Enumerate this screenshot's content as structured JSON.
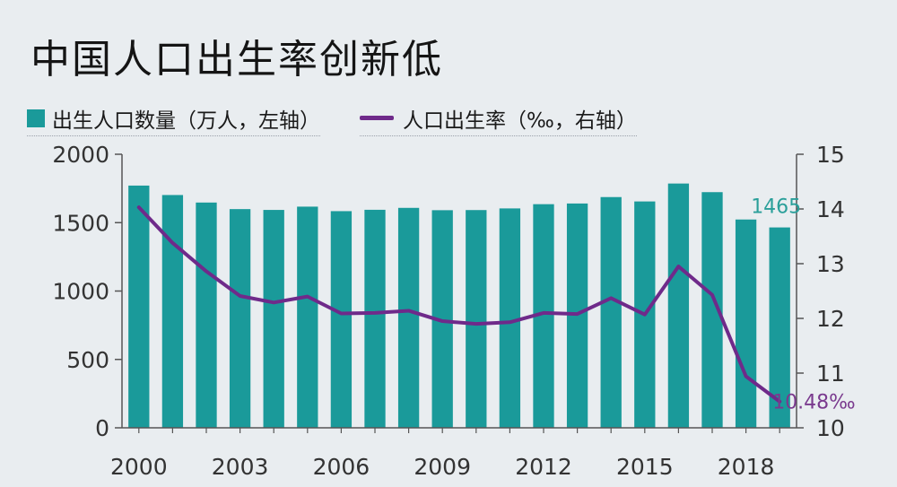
{
  "title": "中国人口出生率创新低",
  "legend": {
    "bar_label": "出生人口数量（万人，左轴）",
    "line_label": "人口出生率（‰，右轴）"
  },
  "colors": {
    "bar": "#1a9a9a",
    "line": "#6f2a8a",
    "bar_label": "#2a9f9a",
    "line_label": "#7a3a8e"
  },
  "chart_data": {
    "type": "bar",
    "x": [
      2000,
      2001,
      2002,
      2003,
      2004,
      2005,
      2006,
      2007,
      2008,
      2009,
      2010,
      2011,
      2012,
      2013,
      2014,
      2015,
      2016,
      2017,
      2018,
      2019
    ],
    "x_tick_labels": [
      "2000",
      "2003",
      "2006",
      "2009",
      "2012",
      "2015",
      "2018"
    ],
    "series": [
      {
        "name": "出生人口数量（万人，左轴）",
        "type": "bar",
        "axis": "left",
        "values": [
          1771,
          1702,
          1647,
          1599,
          1593,
          1617,
          1584,
          1594,
          1608,
          1591,
          1592,
          1604,
          1635,
          1640,
          1687,
          1655,
          1786,
          1723,
          1523,
          1465
        ]
      },
      {
        "name": "人口出生率（‰，右轴）",
        "type": "line",
        "axis": "right",
        "values": [
          14.03,
          13.38,
          12.86,
          12.41,
          12.29,
          12.4,
          12.09,
          12.1,
          12.14,
          11.95,
          11.9,
          11.93,
          12.1,
          12.08,
          12.37,
          12.07,
          12.95,
          12.43,
          10.94,
          10.48
        ]
      }
    ],
    "left_axis": {
      "ylim": [
        0,
        2000
      ],
      "ticks": [
        "0",
        "500",
        "1000",
        "1500",
        "2000"
      ]
    },
    "right_axis": {
      "ylim": [
        10,
        15
      ],
      "ticks": [
        "10",
        "11",
        "12",
        "13",
        "14",
        "15"
      ]
    },
    "annotations": [
      {
        "series": 0,
        "index": 19,
        "text": "1465"
      },
      {
        "series": 1,
        "index": 19,
        "text": "10.48‰"
      }
    ],
    "legend_position": "top-left",
    "grid": false
  }
}
